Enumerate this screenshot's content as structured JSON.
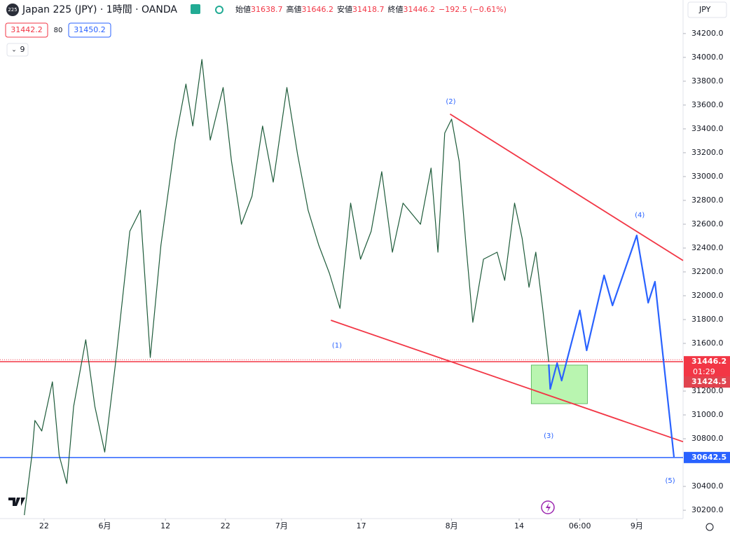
{
  "chart_data": {
    "type": "line",
    "title": "Japan 225 (JPY) · 1時間 · OANDA",
    "symbol_badge": "225",
    "ohlc": [
      {
        "label": "始値",
        "value": 31638.7
      },
      {
        "label": "高値",
        "value": 31646.2
      },
      {
        "label": "安値",
        "value": 31418.7
      },
      {
        "label": "終値",
        "value": 31446.2
      }
    ],
    "change": "−192.5 (−0.61%)",
    "bid": "31442.2",
    "spread": "80",
    "ask": "31450.2",
    "indicator_count": "9",
    "currency": "JPY",
    "xlim": [
      0,
      90
    ],
    "xticks": [
      {
        "value": 5.8,
        "label": "22"
      },
      {
        "value": 13.8,
        "label": "6月"
      },
      {
        "value": 21.8,
        "label": "12"
      },
      {
        "value": 29.7,
        "label": "22"
      },
      {
        "value": 37.1,
        "label": "7月"
      },
      {
        "value": 47.6,
        "label": "17"
      },
      {
        "value": 59.5,
        "label": "8月"
      },
      {
        "value": 68.4,
        "label": "14"
      },
      {
        "value": 76.4,
        "label": "06:00"
      },
      {
        "value": 83.9,
        "label": "9月"
      }
    ],
    "ylim": [
      30130,
      34305
    ],
    "yticks": [
      {
        "value": 30200,
        "label": "30200.0"
      },
      {
        "value": 30400,
        "label": "30400.0"
      },
      {
        "value": 30800,
        "label": "30800.0"
      },
      {
        "value": 31000,
        "label": "31000.0"
      },
      {
        "value": 31200,
        "label": "31200.0"
      },
      {
        "value": 31600,
        "label": "31600.0"
      },
      {
        "value": 31800,
        "label": "31800.0"
      },
      {
        "value": 32000,
        "label": "32000.0"
      },
      {
        "value": 32200,
        "label": "32200.0"
      },
      {
        "value": 32400,
        "label": "32400.0"
      },
      {
        "value": 32600,
        "label": "32600.0"
      },
      {
        "value": 32800,
        "label": "32800.0"
      },
      {
        "value": 33000,
        "label": "33000.0"
      },
      {
        "value": 33200,
        "label": "33200.0"
      },
      {
        "value": 33400,
        "label": "33400.0"
      },
      {
        "value": 33600,
        "label": "33600.0"
      },
      {
        "value": 33800,
        "label": "33800.0"
      },
      {
        "value": 34000,
        "label": "34000.0"
      },
      {
        "value": 34200,
        "label": "34200.0"
      }
    ],
    "series": [
      {
        "color": "#1e5b3a",
        "x": [
          3.2,
          4.2,
          4.6,
          5.5,
          6.9,
          7.8,
          8.8,
          9.7,
          11.3,
          12.5,
          13.8,
          15.2,
          17.1,
          18.5,
          19.8,
          21.2,
          23.1,
          24.5,
          25.4,
          26.6,
          27.7,
          29.4,
          30.5,
          31.8,
          33.2,
          34.6,
          36.0,
          37.8,
          39.2,
          40.6,
          42.0,
          43.4,
          44.8,
          46.2,
          47.5,
          48.9,
          50.3,
          51.7,
          53.1,
          55.4,
          56.8,
          57.7,
          58.6,
          59.5,
          60.5,
          61.4,
          62.3,
          63.7,
          65.5,
          66.5,
          67.8,
          68.8,
          69.7,
          70.6,
          71.5,
          72.3
        ],
        "values": [
          30159,
          30659,
          30953,
          30865,
          31277,
          30659,
          30424,
          31071,
          31630,
          31071,
          30688,
          31424,
          32541,
          32718,
          31482,
          32424,
          33306,
          33776,
          33424,
          33982,
          33306,
          33747,
          33129,
          32600,
          32835,
          33424,
          32953,
          33747,
          33188,
          32718,
          32424,
          32188,
          31894,
          32777,
          32306,
          32541,
          33041,
          32365,
          32777,
          32600,
          33071,
          32365,
          33365,
          33482,
          33129,
          32424,
          31777,
          32306,
          32365,
          32129,
          32777,
          32482,
          32071,
          32365,
          31894,
          31446
        ]
      },
      {
        "color": "#2962ff",
        "x": [
          72.3,
          72.5,
          73.4,
          74.0,
          76.4,
          77.3,
          79.6,
          80.7,
          83.9,
          85.4,
          86.3,
          88.8
        ],
        "values": [
          31424,
          31218,
          31435,
          31288,
          31877,
          31541,
          32171,
          31918,
          32506,
          31941,
          32118,
          30647
        ]
      }
    ],
    "trend_lines": [
      {
        "color": "#f23645",
        "x": [
          59.3,
          90
        ],
        "values": [
          33524,
          32295
        ]
      },
      {
        "color": "#f23645",
        "x": [
          43.6,
          90
        ],
        "values": [
          31794,
          30775
        ]
      }
    ],
    "hlines": [
      {
        "value": 31446.2,
        "color": "#f23645"
      },
      {
        "value": 30642.5,
        "color": "#2962ff"
      }
    ],
    "countdown": "01:29",
    "extra_price_label": 31424.5,
    "zone": {
      "x": [
        70.0,
        77.4
      ],
      "values": [
        31418,
        31094
      ],
      "color": "#b9f5b0"
    },
    "wave_labels": [
      {
        "label": "(1)",
        "x": 44.4,
        "y": 31583
      },
      {
        "label": "(2)",
        "x": 59.4,
        "y": 33629
      },
      {
        "label": "(3)",
        "x": 72.3,
        "y": 30824
      },
      {
        "label": "(4)",
        "x": 84.3,
        "y": 32677
      },
      {
        "label": "(5)",
        "x": 88.3,
        "y": 30447
      }
    ]
  }
}
